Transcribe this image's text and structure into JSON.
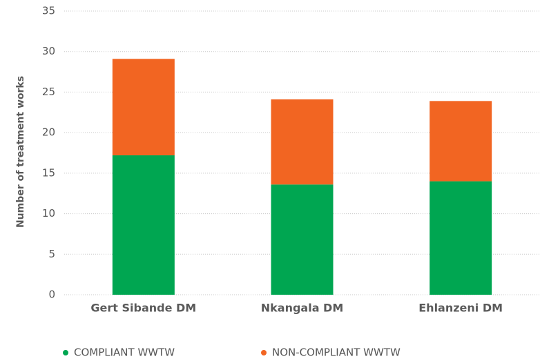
{
  "chart_data": {
    "type": "stacked_bar",
    "y_label": "Number of treatment works",
    "categories": [
      "Gert Sibande DM",
      "Nkangala DM",
      "Ehlanzeni DM"
    ],
    "series": [
      {
        "name": "COMPLIANT WWTW",
        "color": "#00a651",
        "values": [
          17.2,
          13.6,
          14
        ]
      },
      {
        "name": "NON-COMPLIANT WWTW",
        "color": "#f26522",
        "values": [
          11.9,
          10.5,
          9.9
        ]
      }
    ],
    "ylim": [
      0,
      35
    ],
    "yticks": [
      0,
      5,
      10,
      15,
      20,
      25,
      30,
      35
    ],
    "grid": true
  }
}
